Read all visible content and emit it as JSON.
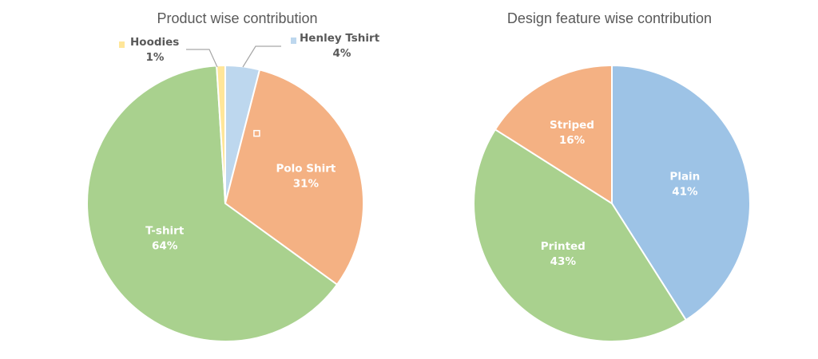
{
  "chart_data": [
    {
      "type": "pie",
      "title": "Product wise contribution",
      "start_angle_deg": 0,
      "slices": [
        {
          "label": "Henley Tshirt",
          "value": 4,
          "value_label": "4%",
          "color": "#bdd7ee",
          "label_style": "outside",
          "text_color": "#595959"
        },
        {
          "label": "Polo Shirt",
          "value": 31,
          "value_label": "31%",
          "color": "#f4b183",
          "label_style": "inside",
          "text_color": "#ffffff"
        },
        {
          "label": "T-shirt",
          "value": 64,
          "value_label": "64%",
          "color": "#a9d18e",
          "label_style": "inside",
          "text_color": "#ffffff"
        },
        {
          "label": "Hoodies",
          "value": 1,
          "value_label": "1%",
          "color": "#ffe699",
          "label_style": "outside",
          "text_color": "#595959"
        }
      ]
    },
    {
      "type": "pie",
      "title": "Design feature wise contribution",
      "start_angle_deg": 0,
      "slices": [
        {
          "label": "Plain",
          "value": 41,
          "value_label": "41%",
          "color": "#9dc3e6",
          "label_style": "inside",
          "text_color": "#ffffff"
        },
        {
          "label": "Printed",
          "value": 43,
          "value_label": "43%",
          "color": "#a9d18e",
          "label_style": "inside",
          "text_color": "#ffffff"
        },
        {
          "label": "Striped",
          "value": 16,
          "value_label": "16%",
          "color": "#f4b183",
          "label_style": "inside",
          "text_color": "#ffffff"
        }
      ]
    }
  ]
}
